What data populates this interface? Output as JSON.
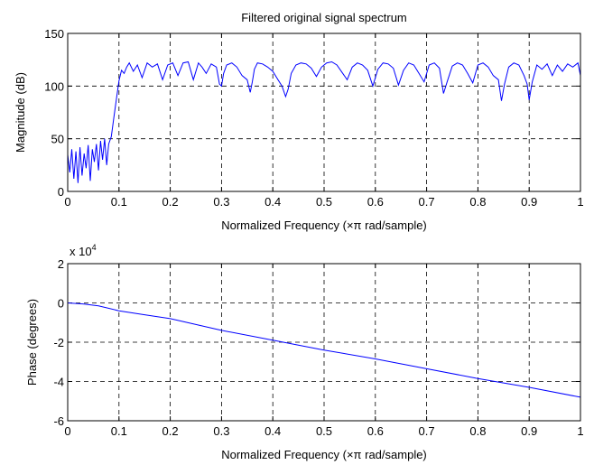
{
  "chart_data": [
    {
      "type": "line",
      "title": "Filtered original signal spectrum",
      "xlabel": "Normalized Frequency  (×π rad/sample)",
      "ylabel": "Magnitude (dB)",
      "xlim": [
        0,
        1
      ],
      "ylim": [
        0,
        150
      ],
      "xticks": [
        "0",
        "0.1",
        "0.2",
        "0.3",
        "0.4",
        "0.5",
        "0.6",
        "0.7",
        "0.8",
        "0.9",
        "1"
      ],
      "yticks": [
        "0",
        "50",
        "100",
        "150"
      ],
      "grid": true,
      "series": [
        {
          "color": "#0000ff",
          "x": [
            0,
            0.004,
            0.008,
            0.012,
            0.016,
            0.02,
            0.024,
            0.028,
            0.032,
            0.036,
            0.04,
            0.044,
            0.048,
            0.052,
            0.056,
            0.06,
            0.064,
            0.068,
            0.072,
            0.076,
            0.08,
            0.085,
            0.09,
            0.095,
            0.1,
            0.105,
            0.11,
            0.115,
            0.12,
            0.128,
            0.136,
            0.145,
            0.155,
            0.165,
            0.175,
            0.185,
            0.195,
            0.205,
            0.215,
            0.225,
            0.235,
            0.245,
            0.255,
            0.262,
            0.27,
            0.28,
            0.29,
            0.296,
            0.3,
            0.304,
            0.31,
            0.32,
            0.33,
            0.34,
            0.35,
            0.356,
            0.36,
            0.364,
            0.37,
            0.38,
            0.39,
            0.4,
            0.41,
            0.418,
            0.425,
            0.43,
            0.436,
            0.445,
            0.455,
            0.465,
            0.475,
            0.485,
            0.495,
            0.505,
            0.515,
            0.525,
            0.535,
            0.545,
            0.555,
            0.565,
            0.575,
            0.585,
            0.595,
            0.605,
            0.615,
            0.625,
            0.635,
            0.645,
            0.655,
            0.665,
            0.675,
            0.685,
            0.695,
            0.705,
            0.715,
            0.725,
            0.733,
            0.74,
            0.75,
            0.76,
            0.77,
            0.78,
            0.79,
            0.8,
            0.81,
            0.82,
            0.83,
            0.84,
            0.846,
            0.852,
            0.86,
            0.87,
            0.88,
            0.89,
            0.896,
            0.9,
            0.906,
            0.915,
            0.925,
            0.935,
            0.945,
            0.955,
            0.965,
            0.975,
            0.985,
            0.995,
            1.0
          ],
          "y": [
            35,
            18,
            40,
            12,
            38,
            8,
            42,
            15,
            36,
            22,
            44,
            10,
            40,
            28,
            45,
            20,
            48,
            30,
            50,
            25,
            45,
            52,
            70,
            88,
            105,
            115,
            112,
            118,
            122,
            114,
            120,
            108,
            122,
            118,
            121,
            106,
            120,
            122,
            110,
            122,
            123,
            106,
            122,
            118,
            112,
            121,
            118,
            102,
            100,
            112,
            120,
            122,
            118,
            110,
            106,
            94,
            104,
            116,
            122,
            121,
            118,
            114,
            106,
            100,
            90,
            97,
            112,
            120,
            122,
            121,
            117,
            109,
            118,
            122,
            123,
            120,
            113,
            106,
            118,
            122,
            120,
            115,
            100,
            116,
            122,
            121,
            117,
            101,
            115,
            122,
            120,
            112,
            104,
            120,
            122,
            117,
            93,
            104,
            119,
            122,
            120,
            112,
            103,
            120,
            122,
            118,
            110,
            106,
            86,
            102,
            118,
            122,
            120,
            110,
            102,
            87,
            104,
            120,
            116,
            121,
            110,
            120,
            114,
            121,
            118,
            122,
            110
          ]
        }
      ]
    },
    {
      "type": "line",
      "title": "",
      "xlabel": "Normalized Frequency  (×π rad/sample)",
      "ylabel": "Phase (degrees)",
      "xlim": [
        0,
        1
      ],
      "ylim": [
        -6,
        2
      ],
      "yscale_label": "x 10",
      "yscale_exp": "4",
      "xticks": [
        "0",
        "0.1",
        "0.2",
        "0.3",
        "0.4",
        "0.5",
        "0.6",
        "0.7",
        "0.8",
        "0.9",
        "1"
      ],
      "yticks": [
        "-6",
        "-4",
        "-2",
        "0",
        "2"
      ],
      "grid": true,
      "series": [
        {
          "color": "#0000ff",
          "x": [
            0,
            0.03,
            0.06,
            0.1,
            0.15,
            0.2,
            0.3,
            0.4,
            0.5,
            0.6,
            0.7,
            0.8,
            0.9,
            1.0
          ],
          "y": [
            0,
            -0.05,
            -0.15,
            -0.4,
            -0.6,
            -0.8,
            -1.4,
            -1.9,
            -2.4,
            -2.85,
            -3.35,
            -3.85,
            -4.3,
            -4.8
          ]
        }
      ]
    }
  ]
}
